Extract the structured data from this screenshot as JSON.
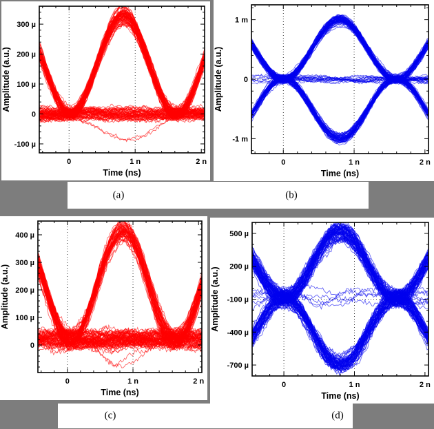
{
  "page": {
    "background": "#7d7d7d",
    "panel_background": "#ffffff"
  },
  "captions": {
    "a": "(a)",
    "b": "(b)",
    "c": "(c)",
    "d": "(d)"
  },
  "chart_data": [
    {
      "id": "a",
      "type": "line",
      "subtype": "eye-diagram",
      "color": "#ff0000",
      "xlabel": "Time (ns)",
      "ylabel": "Amplitude (a.u.)",
      "xlim": [
        -0.45,
        2.05
      ],
      "ylim": [
        -0.00013,
        0.00036
      ],
      "xticks": [
        {
          "v": 0,
          "label": "0"
        },
        {
          "v": 1,
          "label": "1 n"
        },
        {
          "v": 2,
          "label": "2 n"
        }
      ],
      "yticks": [
        {
          "v": -0.0001,
          "label": "-100 µ"
        },
        {
          "v": 0,
          "label": "0"
        },
        {
          "v": 0.0001,
          "label": "100 µ"
        },
        {
          "v": 0.0002,
          "label": "200 µ"
        },
        {
          "v": 0.0003,
          "label": "300 µ"
        }
      ],
      "grid_x": [
        0,
        1
      ],
      "grid_y": [
        0
      ],
      "xminor_div": 5,
      "yminor_div": 5,
      "seed": 101,
      "signal": {
        "modulation": "unipolar-pulse",
        "levels": [
          0,
          1
        ],
        "zero_probability": 0,
        "amplitude": 0.00033,
        "offset": 0,
        "period": 1.6,
        "pulse_center": 0.82,
        "pulse_halfwidth": 0.8,
        "noise": 1.6e-05,
        "amp_jitter": 0.06,
        "traces": 130,
        "outliers": 2,
        "outlier_level": -0.27
      }
    },
    {
      "id": "b",
      "type": "line",
      "subtype": "eye-diagram",
      "color": "#0000ee",
      "xlabel": "Time (ns)",
      "ylabel": "Amplitude (a.u.)",
      "xlim": [
        -0.45,
        2.05
      ],
      "ylim": [
        -0.00125,
        0.00125
      ],
      "xticks": [
        {
          "v": 0,
          "label": "0"
        },
        {
          "v": 1,
          "label": "1 n"
        },
        {
          "v": 2,
          "label": "2 n"
        }
      ],
      "yticks": [
        {
          "v": -0.001,
          "label": "-1 m"
        },
        {
          "v": 0,
          "label": "0"
        },
        {
          "v": 0.001,
          "label": "1 m"
        }
      ],
      "grid_x": [
        0,
        1
      ],
      "grid_y": [
        0
      ],
      "xminor_div": 5,
      "yminor_div": 5,
      "seed": 202,
      "signal": {
        "modulation": "bipolar-pulse",
        "levels": [
          -1,
          1
        ],
        "zero_probability": 0.07,
        "amplitude": 0.001,
        "offset": 0,
        "period": 1.6,
        "pulse_center": 0.8,
        "pulse_halfwidth": 0.8,
        "noise": 5e-05,
        "amp_jitter": 0.05,
        "traces": 140,
        "outliers": 0,
        "outlier_level": 0
      }
    },
    {
      "id": "c",
      "type": "line",
      "subtype": "eye-diagram",
      "color": "#ff0000",
      "xlabel": "Time (ns)",
      "ylabel": "Amplitude (a.u.)",
      "xlim": [
        -0.45,
        2.05
      ],
      "ylim": [
        -0.0001,
        0.00045
      ],
      "xticks": [
        {
          "v": 0,
          "label": "0"
        },
        {
          "v": 1,
          "label": "1 n"
        },
        {
          "v": 2,
          "label": "2 n"
        }
      ],
      "yticks": [
        {
          "v": 0,
          "label": "0"
        },
        {
          "v": 0.0001,
          "label": "100 µ"
        },
        {
          "v": 0.0002,
          "label": "200 µ"
        },
        {
          "v": 0.0003,
          "label": "300 µ"
        },
        {
          "v": 0.0004,
          "label": "400 µ"
        }
      ],
      "grid_x": [
        0,
        1
      ],
      "grid_y": [
        0
      ],
      "xminor_div": 5,
      "yminor_div": 5,
      "seed": 303,
      "signal": {
        "modulation": "unipolar-pulse",
        "levels": [
          0,
          1
        ],
        "zero_probability": 0,
        "amplitude": 0.000395,
        "offset": 2e-05,
        "period": 1.6,
        "pulse_center": 0.85,
        "pulse_halfwidth": 0.8,
        "noise": 2.5e-05,
        "amp_jitter": 0.05,
        "traces": 130,
        "outliers": 2,
        "outlier_level": -0.2
      }
    },
    {
      "id": "d",
      "type": "line",
      "subtype": "eye-diagram",
      "color": "#0000ee",
      "xlabel": "Time (ns)",
      "ylabel": "Amplitude (a.u.)",
      "xlim": [
        -0.45,
        2.05
      ],
      "ylim": [
        -0.0008,
        0.0006
      ],
      "xticks": [
        {
          "v": 0,
          "label": "0"
        },
        {
          "v": 1,
          "label": "1 n"
        },
        {
          "v": 2,
          "label": "2 n"
        }
      ],
      "yticks": [
        {
          "v": -0.0007,
          "label": "-700 µ"
        },
        {
          "v": -0.0004,
          "label": "-400 µ"
        },
        {
          "v": -0.0001,
          "label": "-100 µ"
        },
        {
          "v": 0.0002,
          "label": "200 µ"
        },
        {
          "v": 0.0005,
          "label": "500 µ"
        }
      ],
      "grid_x": [
        0,
        1
      ],
      "grid_y": [
        -0.0001
      ],
      "xminor_div": 5,
      "yminor_div": 3,
      "seed": 404,
      "signal": {
        "modulation": "bipolar-pulse",
        "levels": [
          -1,
          1
        ],
        "zero_probability": 0.06,
        "amplitude": 0.0006,
        "offset": -9e-05,
        "period": 1.6,
        "pulse_center": 0.8,
        "pulse_halfwidth": 0.8,
        "noise": 6e-05,
        "amp_jitter": 0.05,
        "traces": 140,
        "outliers": 0,
        "outlier_level": 0
      }
    }
  ]
}
